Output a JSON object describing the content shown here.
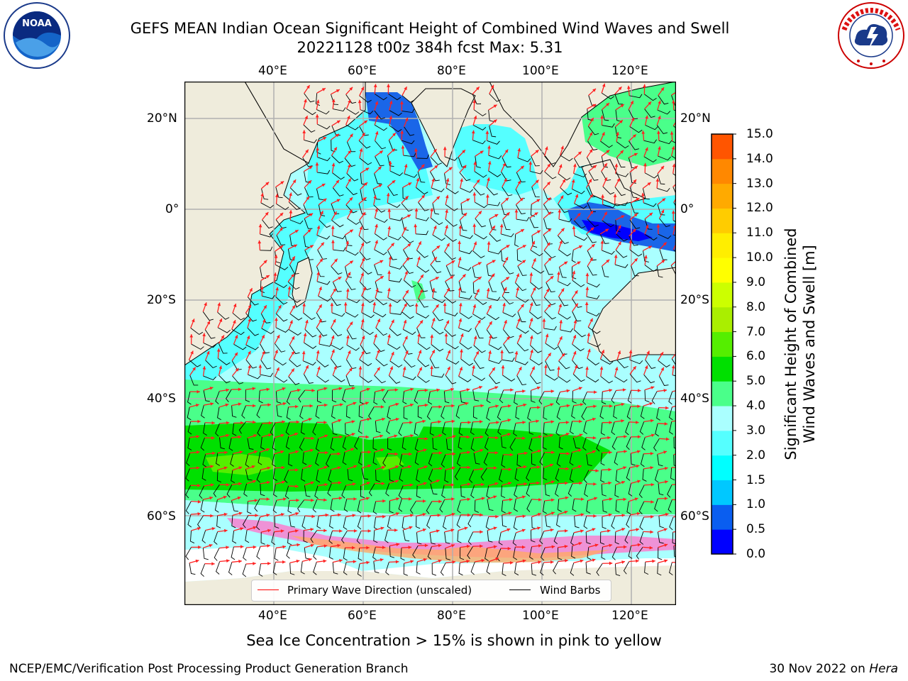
{
  "title": {
    "line1": "GEFS MEAN Indian Ocean Significant Height of Combined Wind Waves and Swell",
    "line2": "20221128 t00z 384h fcst   Max: 5.31"
  },
  "logos": {
    "left": {
      "icon": "noaa-logo",
      "text": "NOAA"
    },
    "right": {
      "icon": "national-weather-service-logo"
    }
  },
  "map": {
    "lon_ticks_top": [
      "40°E",
      "60°E",
      "80°E",
      "100°E",
      "120°E"
    ],
    "lon_ticks_bottom": [
      "40°E",
      "60°E",
      "80°E",
      "100°E",
      "120°E"
    ],
    "lat_ticks_left": [
      "20°N",
      "0°",
      "20°S",
      "40°S",
      "60°S"
    ],
    "lat_ticks_right": [
      "20°N",
      "0°",
      "20°S",
      "40°S",
      "60°S"
    ],
    "lon_range": [
      20,
      130
    ],
    "lat_range": [
      -75,
      28
    ],
    "land_color": "#efecdc",
    "grid_color": "#b0b0b0"
  },
  "colorbar": {
    "title_line1": "Significant Height of Combined",
    "title_line2": "Wind Waves and Swell [m]",
    "ticks": [
      "0.0",
      "0.5",
      "1.0",
      "1.5",
      "2.0",
      "3.0",
      "4.0",
      "5.0",
      "6.0",
      "7.0",
      "8.0",
      "9.0",
      "10.0",
      "11.0",
      "12.0",
      "13.0",
      "14.0",
      "15.0"
    ],
    "colors": [
      "#0000ff",
      "#0a5ef0",
      "#00c8ff",
      "#00ffff",
      "#55ffff",
      "#aaffff",
      "#4aff8a",
      "#00e000",
      "#55ee00",
      "#aaee00",
      "#ccff00",
      "#ffff00",
      "#ffee00",
      "#ffcc00",
      "#ffaa00",
      "#ff8800",
      "#ff5500",
      "#ff2200",
      "#ff0000"
    ]
  },
  "legend": {
    "wave_label": "Primary Wave Direction (unscaled)",
    "wave_color": "#ff0000",
    "barb_label": "Wind Barbs",
    "barb_color": "#000000"
  },
  "note": "Sea Ice Concentration > 15% is shown in pink to yellow",
  "footer": {
    "left": "NCEP/EMC/Verification Post Processing Product Generation Branch",
    "date": "30 Nov 2022 on",
    "machine": "Hera"
  }
}
